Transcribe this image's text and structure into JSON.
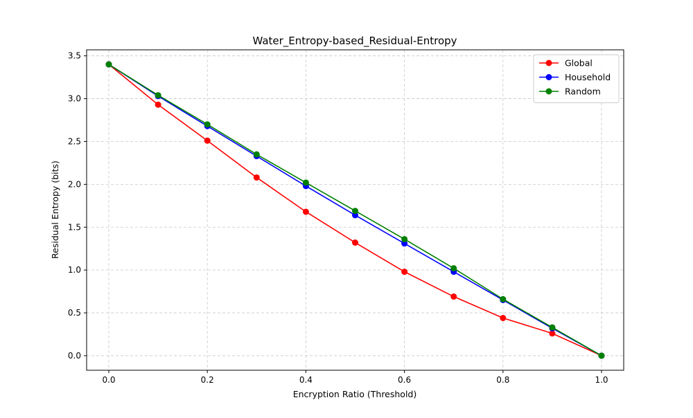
{
  "chart_data": {
    "type": "line",
    "title": "Water_Entropy-based_Residual-Entropy",
    "xlabel": "Encryption Ratio (Threshold)",
    "ylabel": "Residual Entropy (bits)",
    "x": [
      0.0,
      0.1,
      0.2,
      0.3,
      0.4,
      0.5,
      0.6,
      0.7,
      0.8,
      0.9,
      1.0
    ],
    "xlim": [
      -0.045,
      1.045
    ],
    "ylim": [
      -0.17,
      3.57
    ],
    "xticks": [
      0.0,
      0.2,
      0.4,
      0.6,
      0.8,
      1.0
    ],
    "xtick_labels": [
      "0.0",
      "0.2",
      "0.4",
      "0.6",
      "0.8",
      "1.0"
    ],
    "yticks": [
      0.0,
      0.5,
      1.0,
      1.5,
      2.0,
      2.5,
      3.0,
      3.5
    ],
    "ytick_labels": [
      "0.0",
      "0.5",
      "1.0",
      "1.5",
      "2.0",
      "2.5",
      "3.0",
      "3.5"
    ],
    "grid": true,
    "legend_position": "top-right",
    "series": [
      {
        "name": "Global",
        "color": "#ff0000",
        "values": [
          3.4,
          2.93,
          2.51,
          2.08,
          1.68,
          1.32,
          0.98,
          0.69,
          0.44,
          0.26,
          0.0
        ]
      },
      {
        "name": "Household",
        "color": "#0000ff",
        "values": [
          3.4,
          3.03,
          2.68,
          2.33,
          1.98,
          1.64,
          1.31,
          0.98,
          0.65,
          0.32,
          0.0
        ]
      },
      {
        "name": "Random",
        "color": "#008000",
        "values": [
          3.4,
          3.04,
          2.7,
          2.35,
          2.02,
          1.69,
          1.36,
          1.02,
          0.66,
          0.33,
          0.0
        ]
      }
    ]
  }
}
